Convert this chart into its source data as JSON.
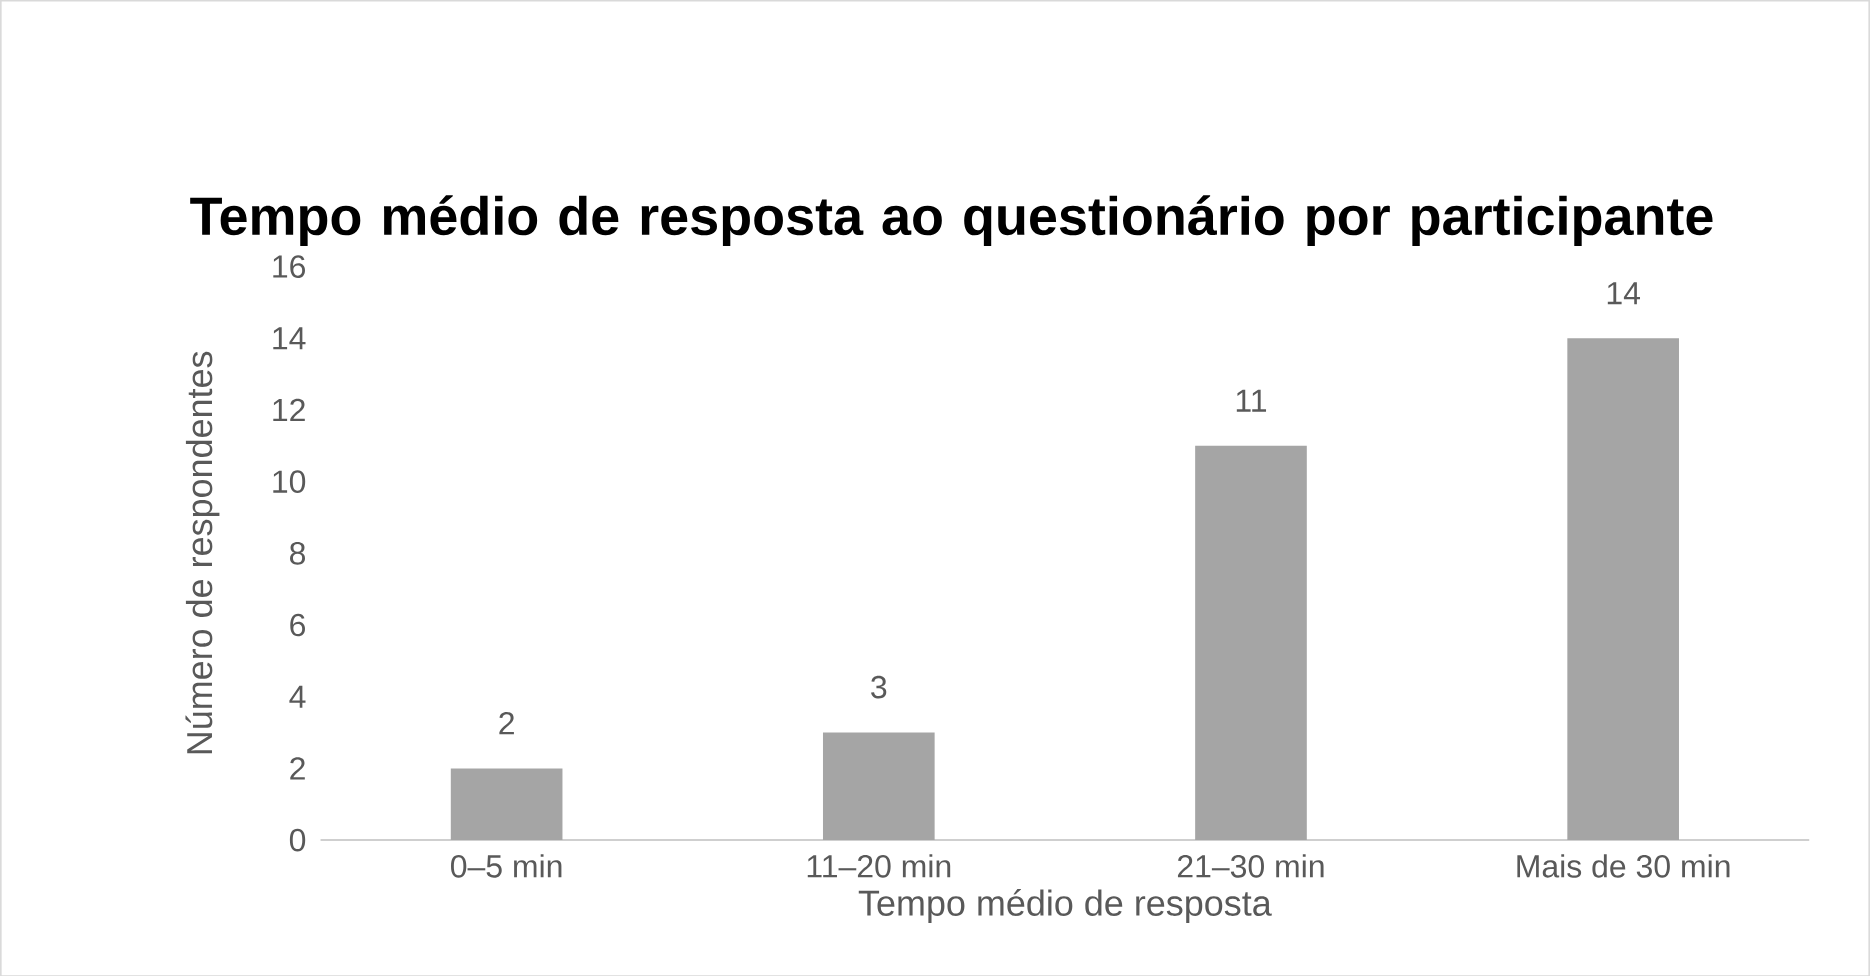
{
  "chart_data": {
    "type": "bar",
    "title": "Tempo médio de resposta ao questionário por participante",
    "xlabel": "Tempo médio de resposta",
    "ylabel": "Número de respondentes",
    "categories": [
      "0–5 min",
      "11–20 min",
      "21–30 min",
      "Mais de 30 min"
    ],
    "values": [
      2,
      3,
      11,
      14
    ],
    "color": "#a5a5a5",
    "ylim": [
      0,
      16
    ],
    "yticks": [
      0,
      2,
      4,
      6,
      8,
      10,
      12,
      14,
      16
    ],
    "data_labels": true
  }
}
